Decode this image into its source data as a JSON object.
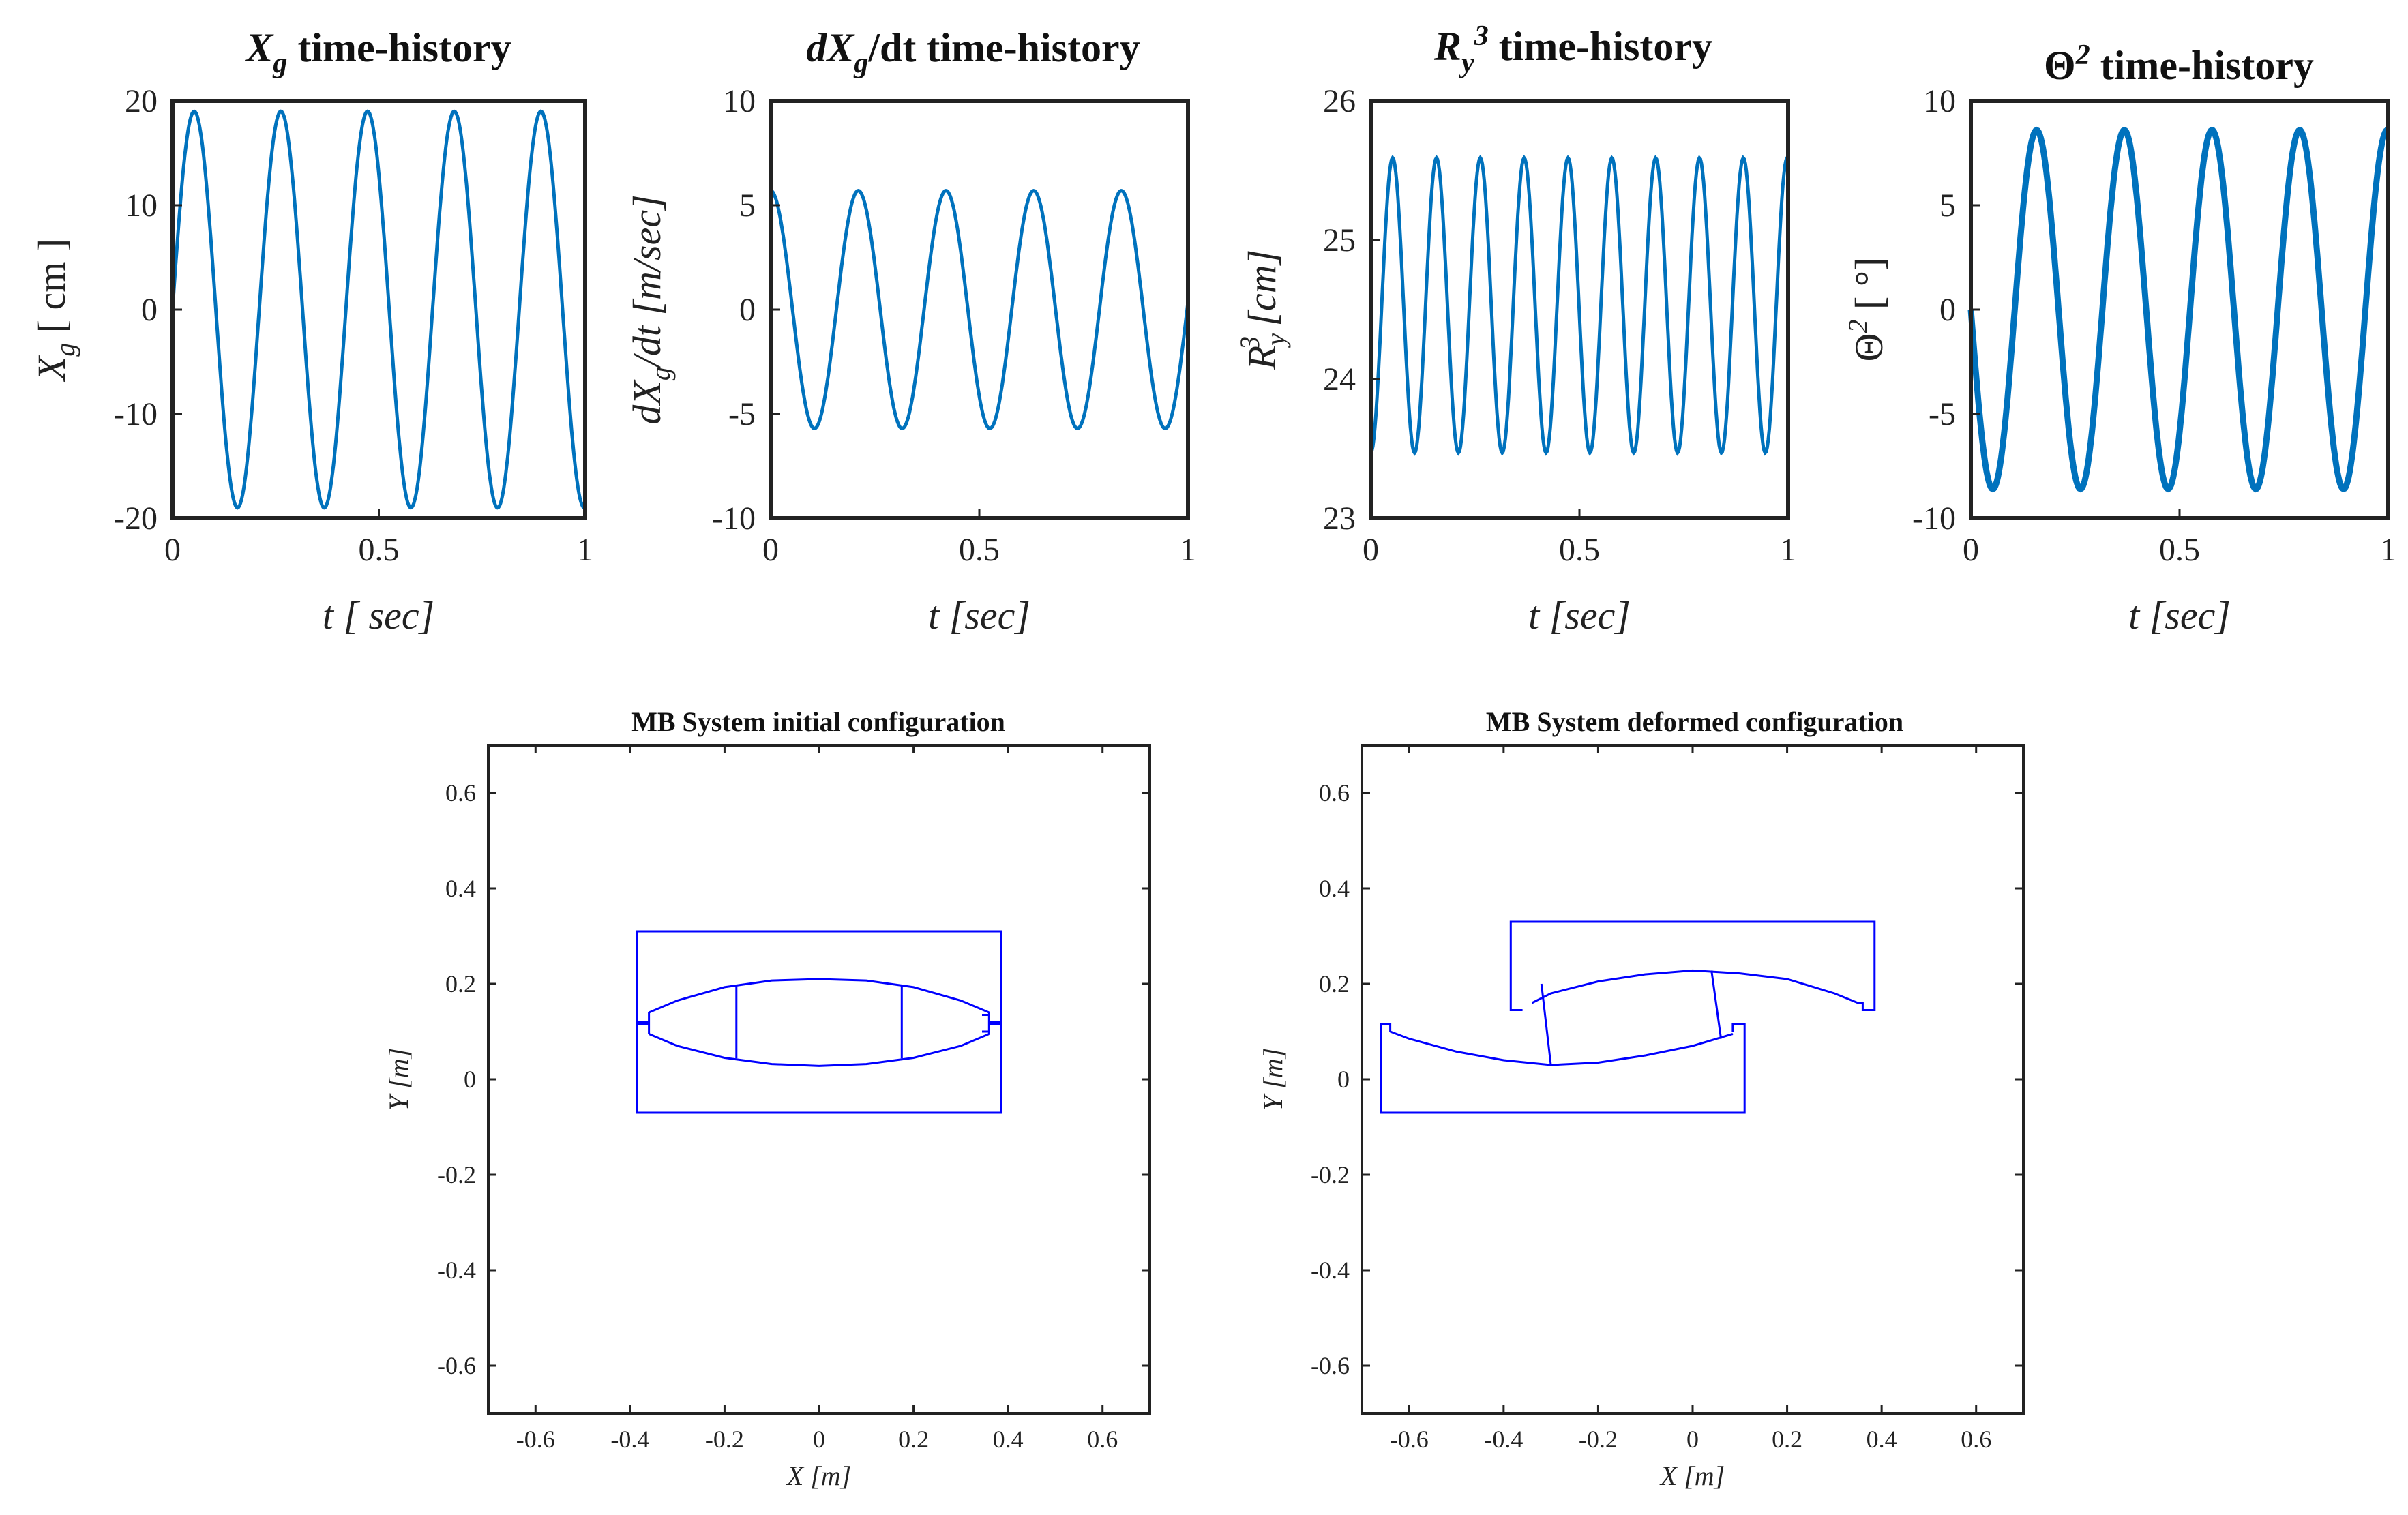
{
  "chart_data": [
    {
      "type": "line",
      "title_main": "X",
      "title_sub": "g",
      "title_rest": " time-history",
      "ylabel_main": "X",
      "ylabel_sub": "g",
      "ylabel_unit": " [ cm ]",
      "xlabel": "t [ sec]",
      "xlim": [
        0,
        1
      ],
      "ylim": [
        -20,
        20
      ],
      "xticks": [
        "0",
        "0.5",
        "1"
      ],
      "xtick_values": [
        0,
        0.5,
        1
      ],
      "yticks": [
        "-20",
        "-10",
        "0",
        "10",
        "20"
      ],
      "ytick_values": [
        -20,
        -10,
        0,
        10,
        20
      ],
      "series": [
        {
          "name": "Xg",
          "amplitude": 19,
          "frequency": 4.76,
          "phase": 0,
          "offset": 0,
          "line_width": 5
        }
      ]
    },
    {
      "type": "line",
      "title_main": "dX",
      "title_sub": "g",
      "title_rest": "/dt time-history",
      "ylabel_main": "dX",
      "ylabel_sub": "g",
      "ylabel_unit": "/dt [m/sec]",
      "xlabel": "t [sec]",
      "xlim": [
        0,
        1
      ],
      "ylim": [
        -10,
        10
      ],
      "xticks": [
        "0",
        "0.5",
        "1"
      ],
      "xtick_values": [
        0,
        0.5,
        1
      ],
      "yticks": [
        "-10",
        "-5",
        "0",
        "5",
        "10"
      ],
      "ytick_values": [
        -10,
        -5,
        0,
        5,
        10
      ],
      "series": [
        {
          "name": "dXg/dt",
          "amplitude": 5.7,
          "frequency": 4.76,
          "phase": 1.5708,
          "offset": 0,
          "line_width": 5
        }
      ]
    },
    {
      "type": "line",
      "title_main": "R",
      "title_sub": "y",
      "title_sup": "3",
      "title_rest": " time-history",
      "ylabel_main": "R",
      "ylabel_sub": "y",
      "ylabel_sup": "3",
      "ylabel_unit": " [cm]",
      "xlabel": "t [sec]",
      "xlim": [
        0,
        1
      ],
      "ylim": [
        23,
        26
      ],
      "xticks": [
        "0",
        "0.5",
        "1"
      ],
      "xtick_values": [
        0,
        0.5,
        1
      ],
      "yticks": [
        "23",
        "24",
        "25",
        "26"
      ],
      "ytick_values": [
        23,
        24,
        25,
        26
      ],
      "series": [
        {
          "name": "Ry3",
          "amplitude": 1.06,
          "frequency": 9.52,
          "phase": -1.5708,
          "offset": 24.53,
          "line_width": 5
        }
      ]
    },
    {
      "type": "line",
      "title_main": "Θ",
      "title_sup": "2",
      "title_rest": "  time-history",
      "ylabel_main": "Θ",
      "ylabel_sup": "2",
      "ylabel_unit": " [ °]",
      "xlabel": "t [sec]",
      "xlim": [
        0,
        1
      ],
      "ylim": [
        -10,
        10
      ],
      "xticks": [
        "0",
        "0.5",
        "1"
      ],
      "xtick_values": [
        0,
        0.5,
        1
      ],
      "yticks": [
        "-10",
        "-5",
        "0",
        "5",
        "10"
      ],
      "ytick_values": [
        -10,
        -5,
        0,
        5,
        10
      ],
      "series": [
        {
          "name": "Theta2",
          "amplitude": 8.6,
          "frequency": 4.76,
          "phase": 3.1416,
          "offset": 0,
          "line_width": 9
        }
      ]
    },
    {
      "type": "line",
      "title": "MB System initial configuration",
      "xlabel": "X [m]",
      "ylabel": "Y [m]",
      "xlim": [
        -0.7,
        0.7
      ],
      "ylim": [
        -0.7,
        0.7
      ],
      "xticks": [
        "-0.6",
        "-0.4",
        "-0.2",
        "0",
        "0.2",
        "0.4",
        "0.6"
      ],
      "xtick_values": [
        -0.6,
        -0.4,
        -0.2,
        0,
        0.2,
        0.4,
        0.6
      ],
      "yticks": [
        "-0.6",
        "-0.4",
        "-0.2",
        "0",
        "0.2",
        "0.4",
        "0.6"
      ],
      "ytick_values": [
        -0.6,
        -0.4,
        -0.2,
        0,
        0.2,
        0.4,
        0.6
      ],
      "series": [
        {
          "name": "upper-plate",
          "x": [
            -0.36,
            -0.385,
            -0.385,
            0.385,
            0.385,
            0.36,
            0.36,
            0.345
          ],
          "y": [
            0.12,
            0.12,
            0.31,
            0.31,
            0.12,
            0.12,
            0.135,
            0.135
          ]
        },
        {
          "name": "lower-plate",
          "x": [
            -0.36,
            -0.385,
            -0.385,
            0.385,
            0.385,
            0.36,
            0.36,
            0.345
          ],
          "y": [
            0.115,
            0.115,
            -0.07,
            -0.07,
            0.115,
            0.115,
            0.1,
            0.1
          ]
        },
        {
          "name": "upper-arc",
          "x": [
            -0.36,
            -0.3,
            -0.2,
            -0.1,
            0,
            0.1,
            0.2,
            0.3,
            0.36
          ],
          "y": [
            0.14,
            0.165,
            0.193,
            0.207,
            0.21,
            0.207,
            0.193,
            0.165,
            0.14
          ]
        },
        {
          "name": "lower-arc",
          "x": [
            -0.36,
            -0.3,
            -0.2,
            -0.1,
            0,
            0.1,
            0.2,
            0.3,
            0.36
          ],
          "y": [
            0.095,
            0.07,
            0.045,
            0.032,
            0.028,
            0.032,
            0.045,
            0.07,
            0.095
          ]
        },
        {
          "name": "slider-left-end",
          "x": [
            -0.36,
            -0.36
          ],
          "y": [
            0.095,
            0.14
          ]
        },
        {
          "name": "slider-right-end",
          "x": [
            0.36,
            0.36
          ],
          "y": [
            0.095,
            0.14
          ]
        },
        {
          "name": "slider-divider-left",
          "x": [
            -0.175,
            -0.175
          ],
          "y": [
            0.197,
            0.044
          ]
        },
        {
          "name": "slider-divider-right",
          "x": [
            0.175,
            0.175
          ],
          "y": [
            0.197,
            0.044
          ]
        }
      ]
    },
    {
      "type": "line",
      "title": "MB System deformed configuration",
      "xlabel": "X [m]",
      "ylabel": "Y [m]",
      "xlim": [
        -0.7,
        0.7
      ],
      "ylim": [
        -0.7,
        0.7
      ],
      "xticks": [
        "-0.6",
        "-0.4",
        "-0.2",
        "0",
        "0.2",
        "0.4",
        "0.6"
      ],
      "xtick_values": [
        -0.6,
        -0.4,
        -0.2,
        0,
        0.2,
        0.4,
        0.6
      ],
      "yticks": [
        "-0.6",
        "-0.4",
        "-0.2",
        "0",
        "0.2",
        "0.4",
        "0.6"
      ],
      "ytick_values": [
        -0.6,
        -0.4,
        -0.2,
        0,
        0.2,
        0.4,
        0.6
      ],
      "series": [
        {
          "name": "upper-plate",
          "x": [
            -0.36,
            -0.385,
            -0.385,
            0.385,
            0.385,
            0.36,
            0.36,
            0.35
          ],
          "y": [
            0.145,
            0.145,
            0.33,
            0.33,
            0.145,
            0.145,
            0.16,
            0.16
          ]
        },
        {
          "name": "lower-plate",
          "x": [
            -0.64,
            -0.64,
            -0.66,
            -0.66,
            0.11,
            0.11,
            0.085,
            0.085
          ],
          "y": [
            0.1,
            0.115,
            0.115,
            -0.07,
            -0.07,
            0.115,
            0.115,
            0.1
          ]
        },
        {
          "name": "upper-arc",
          "x": [
            -0.34,
            -0.3,
            -0.2,
            -0.1,
            0,
            0.1,
            0.2,
            0.3,
            0.35
          ],
          "y": [
            0.16,
            0.18,
            0.205,
            0.22,
            0.228,
            0.222,
            0.21,
            0.18,
            0.16
          ]
        },
        {
          "name": "lower-arc",
          "x": [
            -0.64,
            -0.6,
            -0.5,
            -0.4,
            -0.3,
            -0.2,
            -0.1,
            0,
            0.085
          ],
          "y": [
            0.1,
            0.085,
            0.058,
            0.04,
            0.03,
            0.035,
            0.05,
            0.07,
            0.095
          ]
        },
        {
          "name": "slider-divider-left",
          "x": [
            -0.32,
            -0.3
          ],
          "y": [
            0.2,
            0.03
          ]
        },
        {
          "name": "slider-divider-right",
          "x": [
            0.04,
            0.06
          ],
          "y": [
            0.228,
            0.085
          ]
        }
      ]
    }
  ]
}
